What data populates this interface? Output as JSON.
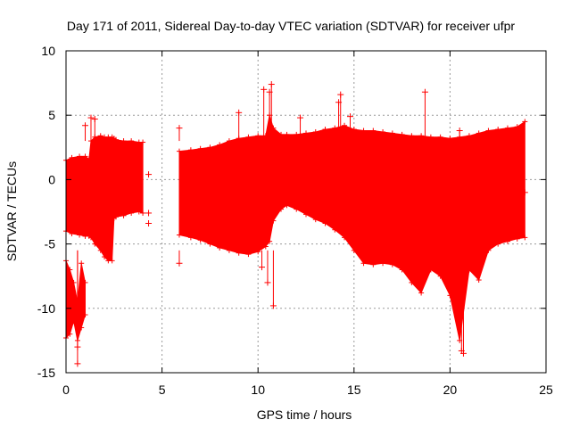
{
  "chart_data": {
    "type": "scatter",
    "title": "Day 171 of 2011, Sidereal Day-to-day VTEC variation (SDTVAR) for receiver ufpr",
    "xlabel": "GPS time / hours",
    "ylabel": "SDTVAR / TECUs",
    "xlim": [
      0,
      25
    ],
    "ylim": [
      -15,
      10
    ],
    "xticks": [
      0,
      5,
      10,
      15,
      20,
      25
    ],
    "yticks": [
      -15,
      -10,
      -5,
      0,
      5,
      10
    ],
    "grid": true,
    "color": "#ff0000",
    "marker": "+",
    "envelope": {
      "segments": [
        {
          "x": [
            0.0,
            0.3,
            0.7,
            1.0,
            1.2,
            1.3,
            1.5,
            1.8,
            2.0,
            2.2,
            2.4,
            2.5,
            2.6,
            3.0,
            3.4,
            3.8,
            4.0
          ],
          "upper": [
            1.5,
            1.7,
            1.8,
            1.8,
            1.6,
            3.0,
            3.3,
            3.4,
            3.3,
            3.3,
            3.3,
            3.2,
            3.1,
            3.0,
            3.0,
            2.9,
            2.9
          ],
          "lower": [
            -4.0,
            -4.2,
            -4.3,
            -4.4,
            -4.4,
            -4.5,
            -5.0,
            -5.5,
            -6.0,
            -6.3,
            -6.3,
            -3.0,
            -2.9,
            -2.8,
            -2.6,
            -2.5,
            -2.6
          ]
        },
        {
          "x": [
            5.9,
            6.5,
            7.0,
            7.5,
            8.0,
            8.5,
            9.0,
            9.5,
            10.0,
            10.4,
            10.6,
            10.8,
            11.2,
            11.5,
            12.0,
            12.5,
            13.0,
            13.5,
            14.0,
            14.5,
            15.0,
            15.5,
            16.0,
            16.5,
            17.0,
            17.5,
            18.0,
            18.5,
            19.0,
            19.5,
            20.0,
            20.5,
            21.0,
            21.5,
            22.0,
            22.5,
            23.0,
            23.5,
            23.9
          ],
          "upper": [
            2.2,
            2.3,
            2.4,
            2.5,
            2.7,
            3.0,
            3.2,
            3.3,
            3.4,
            3.4,
            5.0,
            4.0,
            3.5,
            3.5,
            3.5,
            3.6,
            3.7,
            3.9,
            4.0,
            4.2,
            3.9,
            3.8,
            3.8,
            3.7,
            3.6,
            3.5,
            3.4,
            3.4,
            3.3,
            3.3,
            3.2,
            3.3,
            3.4,
            3.6,
            3.8,
            3.9,
            4.0,
            4.1,
            4.5
          ],
          "lower": [
            -4.3,
            -4.5,
            -4.7,
            -5.0,
            -5.3,
            -5.5,
            -5.7,
            -5.8,
            -5.6,
            -5.2,
            -4.8,
            -3.2,
            -2.3,
            -2.0,
            -2.3,
            -2.7,
            -3.1,
            -3.4,
            -3.9,
            -4.5,
            -5.5,
            -6.5,
            -6.6,
            -6.5,
            -6.6,
            -7.0,
            -8.0,
            -8.8,
            -7.0,
            -7.5,
            -9.0,
            -12.5,
            -7.0,
            -7.8,
            -5.5,
            -5.0,
            -4.8,
            -4.6,
            -4.5
          ]
        },
        {
          "x": [
            0.0,
            0.2,
            0.4,
            0.6,
            0.8,
            1.0
          ],
          "upper": [
            -6.3,
            -7.0,
            -8.0,
            -9.5,
            -6.5,
            -8.0
          ],
          "lower": [
            -12.3,
            -12.0,
            -11.0,
            -12.5,
            -11.5,
            -10.5
          ]
        }
      ]
    },
    "outliers": [
      {
        "x": 0.6,
        "y": -14.3
      },
      {
        "x": 0.6,
        "y": -13.0
      },
      {
        "x": 1.0,
        "y": 4.2
      },
      {
        "x": 1.3,
        "y": 4.8
      },
      {
        "x": 1.5,
        "y": 4.7
      },
      {
        "x": 4.3,
        "y": 0.4
      },
      {
        "x": 4.3,
        "y": -2.6
      },
      {
        "x": 4.3,
        "y": -3.4
      },
      {
        "x": 5.9,
        "y": 4.0
      },
      {
        "x": 5.9,
        "y": -6.5
      },
      {
        "x": 9.0,
        "y": 5.2
      },
      {
        "x": 10.3,
        "y": 7.0
      },
      {
        "x": 10.6,
        "y": 6.8
      },
      {
        "x": 10.7,
        "y": 7.4
      },
      {
        "x": 10.5,
        "y": -8.0
      },
      {
        "x": 10.8,
        "y": -9.8
      },
      {
        "x": 10.2,
        "y": -6.8
      },
      {
        "x": 12.2,
        "y": 4.8
      },
      {
        "x": 14.3,
        "y": 6.6
      },
      {
        "x": 14.2,
        "y": 6.0
      },
      {
        "x": 14.8,
        "y": 4.9
      },
      {
        "x": 18.7,
        "y": 6.8
      },
      {
        "x": 20.5,
        "y": 3.8
      },
      {
        "x": 20.6,
        "y": -13.3
      },
      {
        "x": 20.7,
        "y": -13.5
      },
      {
        "x": 23.9,
        "y": -1.0
      }
    ]
  }
}
